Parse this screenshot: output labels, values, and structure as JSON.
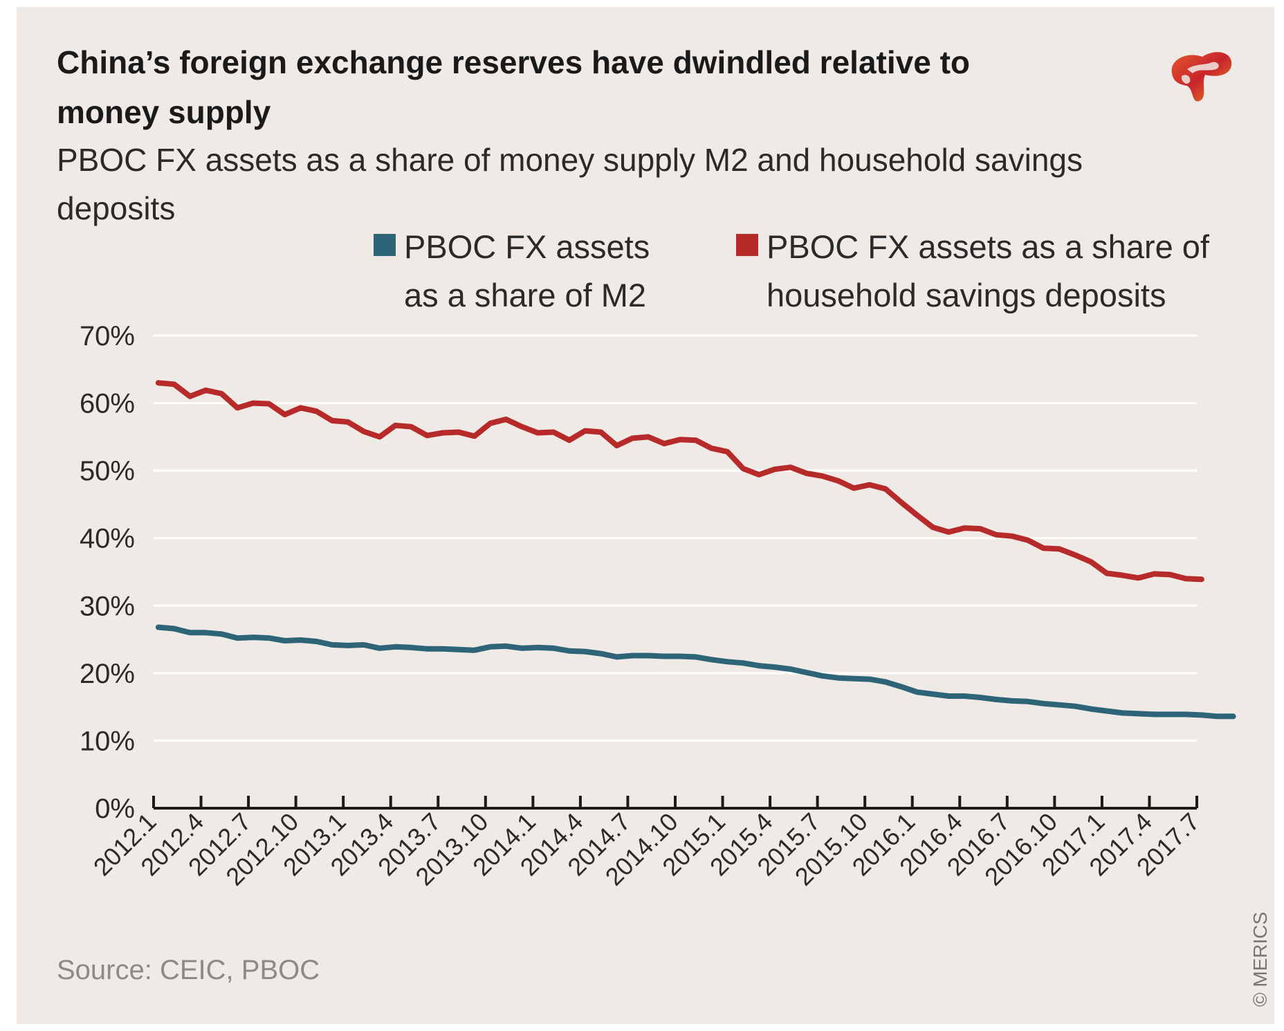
{
  "colors": {
    "background": "#efeae6",
    "m2": "#2e6478",
    "savings": "#b72a2a",
    "grid": "#ffffff",
    "axis": "#1a1a1a"
  },
  "source": "Source: CEIC, PBOC",
  "copyright": "© MERICS",
  "logo": {
    "icon": "merics-logo-icon"
  },
  "chart_data": {
    "type": "line",
    "title": "China’s foreign exchange reserves have dwindled relative to money supply",
    "subtitle": "PBOC FX assets as a share of money supply M2 and household savings deposits",
    "ylim": [
      0,
      70
    ],
    "y_ticks": [
      "0%",
      "10%",
      "20%",
      "30%",
      "40%",
      "50%",
      "60%",
      "70%"
    ],
    "y_tick_values": [
      0,
      10,
      20,
      30,
      40,
      50,
      60,
      70
    ],
    "x_tick_labels": [
      "2012.1",
      "2012.4",
      "2012.7",
      "2012.10",
      "2013.1",
      "2013.4",
      "2013.7",
      "2013.10",
      "2014.1",
      "2014.4",
      "2014.7",
      "2014.10",
      "2015.1",
      "2015.4",
      "2015.7",
      "2015.10",
      "2016.1",
      "2016.4",
      "2016.7",
      "2016.10",
      "2017.1",
      "2017.4",
      "2017.7"
    ],
    "grid": true,
    "legend_placement": "top",
    "series": [
      {
        "name": "PBOC FX assets as a share of M2",
        "legend_lines": [
          "PBOC FX assets",
          "as a share of M2"
        ],
        "values": [
          26.8,
          26.6,
          26.0,
          26.0,
          25.8,
          25.2,
          25.3,
          25.2,
          24.8,
          24.9,
          24.7,
          24.2,
          24.1,
          24.2,
          23.7,
          23.9,
          23.8,
          23.6,
          23.6,
          23.5,
          23.4,
          23.9,
          24.0,
          23.7,
          23.8,
          23.7,
          23.3,
          23.2,
          22.9,
          22.4,
          22.6,
          22.6,
          22.5,
          22.5,
          22.4,
          22.0,
          21.7,
          21.5,
          21.1,
          20.9,
          20.6,
          20.1,
          19.6,
          19.3,
          19.2,
          19.1,
          18.7,
          18.0,
          17.2,
          16.9,
          16.6,
          16.6,
          16.4,
          16.1,
          15.9,
          15.8,
          15.5,
          15.3,
          15.1,
          14.7,
          14.4,
          14.1,
          14.0,
          13.9,
          13.9,
          13.9,
          13.8,
          13.6,
          13.6
        ]
      },
      {
        "name": "PBOC FX assets as a share of household savings deposits",
        "legend_lines": [
          "PBOC FX assets as a share of",
          "household savings deposits"
        ],
        "values": [
          63.0,
          62.8,
          61.0,
          61.9,
          61.4,
          59.3,
          60.0,
          59.9,
          58.3,
          59.3,
          58.8,
          57.4,
          57.2,
          55.8,
          55.0,
          56.7,
          56.5,
          55.2,
          55.6,
          55.7,
          55.1,
          57.0,
          57.6,
          56.5,
          55.6,
          55.7,
          54.5,
          55.9,
          55.7,
          53.7,
          54.8,
          55.0,
          54.0,
          54.6,
          54.5,
          53.3,
          52.8,
          50.3,
          49.4,
          50.2,
          50.5,
          49.6,
          49.2,
          48.5,
          47.4,
          47.9,
          47.3,
          45.3,
          43.4,
          41.6,
          40.9,
          41.5,
          41.4,
          40.5,
          40.3,
          39.7,
          38.5,
          38.4,
          37.5,
          36.5,
          34.8,
          34.5,
          34.1,
          34.7,
          34.6,
          34.0,
          33.9
        ]
      }
    ]
  }
}
